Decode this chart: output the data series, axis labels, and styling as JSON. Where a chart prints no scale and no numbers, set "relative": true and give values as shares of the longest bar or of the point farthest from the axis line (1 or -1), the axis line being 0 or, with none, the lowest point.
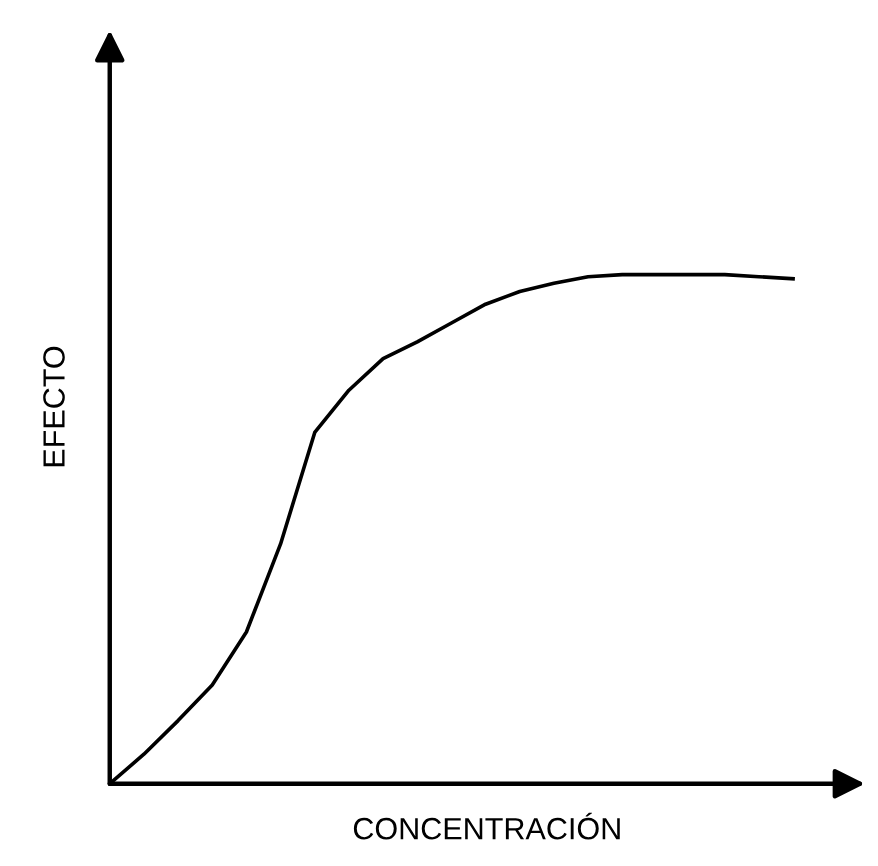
{
  "chart_data": {
    "type": "line",
    "relative": true,
    "xlabel": "CONCENTRACIÓN",
    "ylabel": "EFECTO",
    "categories": [
      null,
      null,
      null,
      null,
      null,
      null,
      null,
      null,
      null,
      null,
      null,
      null,
      null,
      null,
      null,
      null,
      null,
      null,
      null,
      null,
      null
    ],
    "series": [
      {
        "color": "#000000",
        "values": [
          0,
          0.058,
          0.124,
          0.194,
          0.298,
          0.471,
          0.69,
          0.773,
          0.835,
          0.868,
          0.905,
          0.942,
          0.967,
          0.983,
          0.996,
          1,
          1,
          1,
          1,
          0.996,
          0.992
        ]
      }
    ],
    "grid": false,
    "legend": false,
    "tick_labels": false
  }
}
